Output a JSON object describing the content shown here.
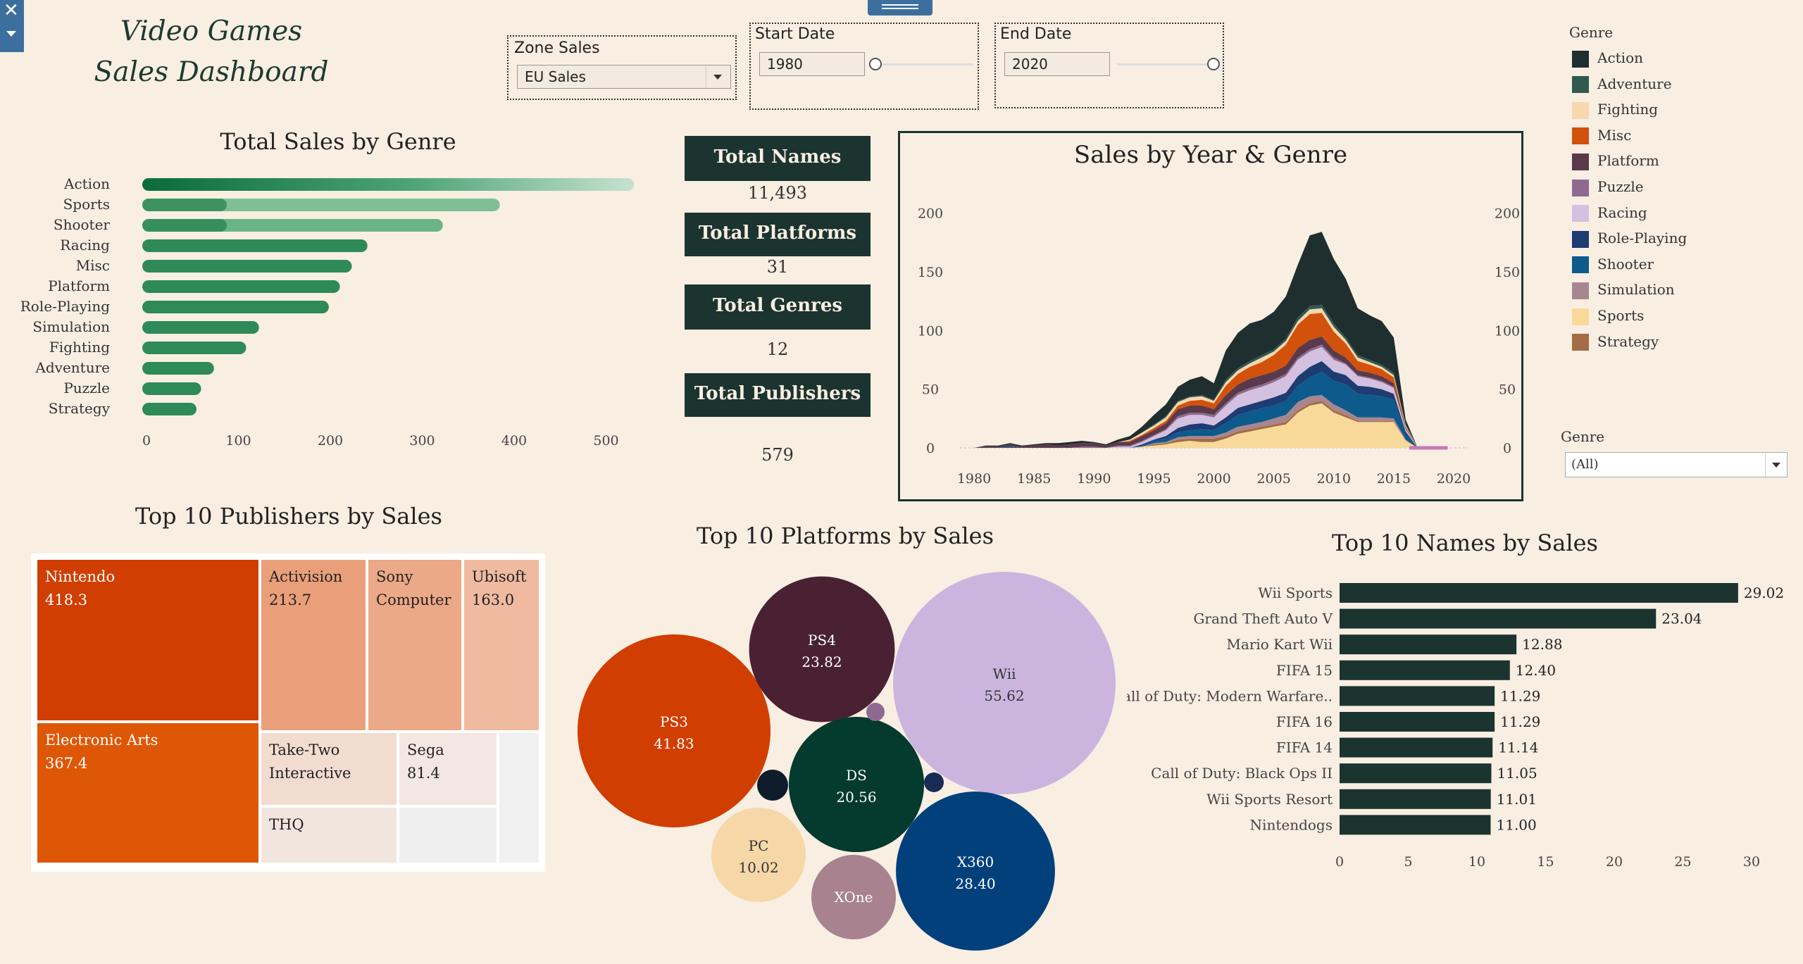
{
  "dashboard": {
    "title_line1": "Video Games",
    "title_line2": "Sales Dashboard"
  },
  "filters": {
    "zone": {
      "label": "Zone Sales",
      "value": "EU Sales"
    },
    "start_date": {
      "label": "Start Date",
      "value": "1980"
    },
    "end_date": {
      "label": "End Date",
      "value": "2020"
    },
    "genre_legend_title": "Genre",
    "genre_select_label": "Genre",
    "genre_select_value": "(All)"
  },
  "kpis": {
    "names": {
      "label": "Total Names",
      "value": "11,493"
    },
    "platforms": {
      "label": "Total Platforms",
      "value": "31"
    },
    "genres": {
      "label": "Total Genres",
      "value": "12"
    },
    "publishers": {
      "label": "Total Publishers",
      "value": "579"
    }
  },
  "genres": [
    {
      "name": "Action",
      "color": "#1f2e2f"
    },
    {
      "name": "Adventure",
      "color": "#2f5a4f"
    },
    {
      "name": "Fighting",
      "color": "#f6d7b0"
    },
    {
      "name": "Misc",
      "color": "#d3520b"
    },
    {
      "name": "Platform",
      "color": "#5a3a4a"
    },
    {
      "name": "Puzzle",
      "color": "#8e6a90"
    },
    {
      "name": "Racing",
      "color": "#d4c0e0"
    },
    {
      "name": "Role-Playing",
      "color": "#1d3c72"
    },
    {
      "name": "Shooter",
      "color": "#0d5a8c"
    },
    {
      "name": "Simulation",
      "color": "#a8868f"
    },
    {
      "name": "Sports",
      "color": "#f8d99a"
    },
    {
      "name": "Strategy",
      "color": "#a46b45"
    }
  ],
  "chart_data": [
    {
      "id": "genre-bar",
      "type": "bar",
      "title": "Total Sales by Genre",
      "categories": [
        "Action",
        "Sports",
        "Shooter",
        "Racing",
        "Misc",
        "Platform",
        "Role-Playing",
        "Simulation",
        "Fighting",
        "Adventure",
        "Puzzle",
        "Strategy"
      ],
      "values": [
        535,
        389,
        327,
        245,
        228,
        215,
        203,
        127,
        113,
        78,
        64,
        59
      ],
      "xlim": [
        0,
        560
      ],
      "xticks": [
        0,
        100,
        200,
        300,
        400,
        500
      ]
    },
    {
      "id": "year-area",
      "type": "area",
      "title": "Sales by Year & Genre",
      "x": [
        1980,
        1981,
        1982,
        1983,
        1984,
        1985,
        1986,
        1987,
        1988,
        1989,
        1990,
        1991,
        1992,
        1993,
        1994,
        1995,
        1996,
        1997,
        1998,
        1999,
        2000,
        2001,
        2002,
        2003,
        2004,
        2005,
        2006,
        2007,
        2008,
        2009,
        2010,
        2011,
        2012,
        2013,
        2014,
        2015,
        2016,
        2017,
        2020
      ],
      "series": [
        {
          "name": "Sports",
          "values": [
            0,
            0,
            0,
            0,
            0,
            0,
            0,
            0,
            0,
            0,
            0,
            0,
            0,
            0,
            1,
            2,
            3,
            5,
            6,
            5,
            5,
            8,
            12,
            14,
            16,
            18,
            20,
            30,
            36,
            38,
            30,
            26,
            22,
            22,
            22,
            22,
            6,
            0,
            0
          ]
        },
        {
          "name": "Strategy",
          "values": [
            0,
            0,
            0,
            0,
            0,
            0,
            0,
            0,
            0,
            0,
            0,
            0,
            0,
            0,
            0,
            1,
            1,
            2,
            2,
            3,
            3,
            2,
            2,
            2,
            2,
            2,
            2,
            2,
            2,
            2,
            2,
            2,
            1,
            1,
            1,
            1,
            0,
            0,
            0
          ]
        },
        {
          "name": "Simulation",
          "values": [
            0,
            0,
            0,
            0,
            0,
            0,
            0,
            0,
            0,
            0,
            0,
            0,
            0,
            0,
            0,
            1,
            1,
            2,
            2,
            2,
            2,
            3,
            4,
            4,
            4,
            5,
            6,
            7,
            6,
            5,
            5,
            4,
            3,
            3,
            3,
            2,
            1,
            0,
            0
          ]
        },
        {
          "name": "Shooter",
          "values": [
            0,
            0,
            0,
            1,
            0,
            0,
            0,
            0,
            0,
            0,
            0,
            0,
            0,
            0,
            1,
            2,
            3,
            4,
            5,
            6,
            5,
            8,
            10,
            11,
            12,
            11,
            12,
            14,
            16,
            20,
            20,
            22,
            20,
            19,
            18,
            16,
            5,
            0,
            0
          ]
        },
        {
          "name": "Role-Playing",
          "values": [
            0,
            0,
            0,
            0,
            0,
            0,
            0,
            0,
            0,
            0,
            0,
            0,
            0,
            0,
            1,
            1,
            2,
            4,
            5,
            5,
            4,
            5,
            6,
            6,
            6,
            7,
            7,
            8,
            9,
            9,
            8,
            8,
            7,
            7,
            6,
            5,
            2,
            0,
            0
          ]
        },
        {
          "name": "Racing",
          "values": [
            0,
            0,
            0,
            0,
            0,
            0,
            0,
            0,
            0,
            0,
            0,
            0,
            1,
            1,
            2,
            3,
            5,
            8,
            8,
            7,
            7,
            10,
            11,
            12,
            12,
            13,
            14,
            14,
            13,
            12,
            10,
            9,
            8,
            7,
            6,
            5,
            2,
            0,
            0
          ]
        },
        {
          "name": "Puzzle",
          "values": [
            0,
            0,
            0,
            0,
            0,
            0,
            0,
            0,
            0,
            1,
            1,
            0,
            1,
            1,
            1,
            1,
            1,
            2,
            2,
            2,
            2,
            2,
            2,
            2,
            2,
            2,
            2,
            2,
            2,
            2,
            2,
            1,
            1,
            1,
            1,
            1,
            0,
            0,
            0
          ]
        },
        {
          "name": "Platform",
          "values": [
            0,
            1,
            1,
            2,
            1,
            2,
            3,
            2,
            3,
            3,
            3,
            2,
            3,
            3,
            4,
            4,
            5,
            6,
            6,
            6,
            5,
            7,
            7,
            8,
            8,
            7,
            7,
            8,
            8,
            7,
            6,
            5,
            4,
            4,
            4,
            3,
            1,
            0,
            0
          ]
        },
        {
          "name": "Misc",
          "values": [
            0,
            0,
            0,
            0,
            0,
            0,
            0,
            0,
            0,
            0,
            0,
            0,
            0,
            1,
            1,
            2,
            2,
            3,
            4,
            5,
            5,
            8,
            9,
            10,
            11,
            14,
            18,
            20,
            22,
            20,
            16,
            12,
            8,
            7,
            6,
            5,
            1,
            0,
            0
          ]
        },
        {
          "name": "Fighting",
          "values": [
            0,
            0,
            0,
            0,
            0,
            0,
            0,
            0,
            0,
            0,
            0,
            0,
            0,
            1,
            2,
            2,
            3,
            3,
            3,
            3,
            2,
            3,
            3,
            3,
            4,
            3,
            3,
            3,
            4,
            4,
            4,
            3,
            3,
            2,
            2,
            2,
            1,
            0,
            0
          ]
        },
        {
          "name": "Adventure",
          "values": [
            0,
            0,
            0,
            0,
            0,
            0,
            0,
            0,
            0,
            0,
            0,
            0,
            0,
            0,
            0,
            1,
            1,
            1,
            1,
            1,
            1,
            2,
            2,
            2,
            2,
            2,
            2,
            3,
            3,
            3,
            3,
            2,
            2,
            2,
            2,
            2,
            1,
            0,
            0
          ]
        },
        {
          "name": "Action",
          "values": [
            0,
            1,
            1,
            1,
            1,
            1,
            1,
            2,
            2,
            2,
            1,
            1,
            2,
            3,
            5,
            8,
            10,
            12,
            14,
            16,
            14,
            25,
            30,
            32,
            30,
            32,
            36,
            45,
            60,
            62,
            55,
            50,
            40,
            38,
            37,
            30,
            4,
            0,
            0
          ]
        }
      ],
      "xticks": [
        1980,
        1985,
        1990,
        1995,
        2000,
        2005,
        2010,
        2015,
        2020
      ],
      "ylim": [
        0,
        210
      ],
      "yticks": [
        0,
        50,
        100,
        150,
        200
      ]
    },
    {
      "id": "publisher-treemap",
      "type": "treemap",
      "title": "Top 10 Publishers by Sales",
      "items": [
        {
          "name": "Nintendo",
          "value": 418.3,
          "label": "418.3",
          "color": "#d13e02"
        },
        {
          "name": "Electronic Arts",
          "value": 367.4,
          "label": "367.4",
          "color": "#de5706"
        },
        {
          "name": "Activision",
          "value": 213.7,
          "label": "213.7",
          "color": "#e9a07a"
        },
        {
          "name": "Sony Computer",
          "value": null,
          "label": "",
          "color": "#eba987"
        },
        {
          "name": "Ubisoft",
          "value": 163.0,
          "label": "163.0",
          "color": "#efbaa0"
        },
        {
          "name": "Take-Two Interactive",
          "value": null,
          "label": "",
          "color": "#f2dcd0"
        },
        {
          "name": "Sega",
          "value": 81.4,
          "label": "81.4",
          "color": "#f3e7e1"
        },
        {
          "name": "THQ",
          "value": null,
          "label": "",
          "color": "#f2e5dd"
        },
        {
          "name": "",
          "value": null,
          "label": "",
          "color": "#efefef"
        },
        {
          "name": "",
          "value": null,
          "label": "",
          "color": "#f0f0f0"
        }
      ]
    },
    {
      "id": "platform-bubbles",
      "type": "bubble",
      "title": "Top 10 Platforms by Sales",
      "items": [
        {
          "name": "Wii",
          "value": 55.62,
          "label": "55.62",
          "color": "#cbb5de"
        },
        {
          "name": "PS3",
          "value": 41.83,
          "label": "41.83",
          "color": "#d13e02"
        },
        {
          "name": "X360",
          "value": 28.4,
          "label": "28.40",
          "color": "#02407c"
        },
        {
          "name": "PS4",
          "value": 23.82,
          "label": "23.82",
          "color": "#4a2133"
        },
        {
          "name": "DS",
          "value": 20.56,
          "label": "20.56",
          "color": "#053a2e"
        },
        {
          "name": "PC",
          "value": 10.02,
          "label": "10.02",
          "color": "#f6d7a8"
        },
        {
          "name": "XOne",
          "value": null,
          "label": "",
          "color": "#a8838f"
        },
        {
          "name": "",
          "value": null,
          "label": "",
          "color": "#0e1c2b"
        },
        {
          "name": "",
          "value": null,
          "label": "",
          "color": "#182c55"
        },
        {
          "name": "",
          "value": null,
          "label": "",
          "color": "#8e6a90"
        }
      ]
    },
    {
      "id": "names-bar",
      "type": "bar",
      "title": "Top 10 Names by Sales",
      "categories": [
        "Wii Sports",
        "Grand Theft Auto V",
        "Mario Kart Wii",
        "FIFA 15",
        "Call of Duty: Modern Warfare..",
        "FIFA 16",
        "FIFA 14",
        "Call of Duty: Black Ops II",
        "Wii Sports Resort",
        "Nintendogs"
      ],
      "values": [
        29.02,
        23.04,
        12.88,
        12.4,
        11.29,
        11.29,
        11.14,
        11.05,
        11.01,
        11.0
      ],
      "labels": [
        "29.02",
        "23.04",
        "12.88",
        "12.40",
        "11.29",
        "11.29",
        "11.14",
        "11.05",
        "11.01",
        "11.00"
      ],
      "xlim": [
        0,
        31
      ],
      "xticks": [
        0,
        5,
        10,
        15,
        20,
        25,
        30
      ]
    }
  ]
}
